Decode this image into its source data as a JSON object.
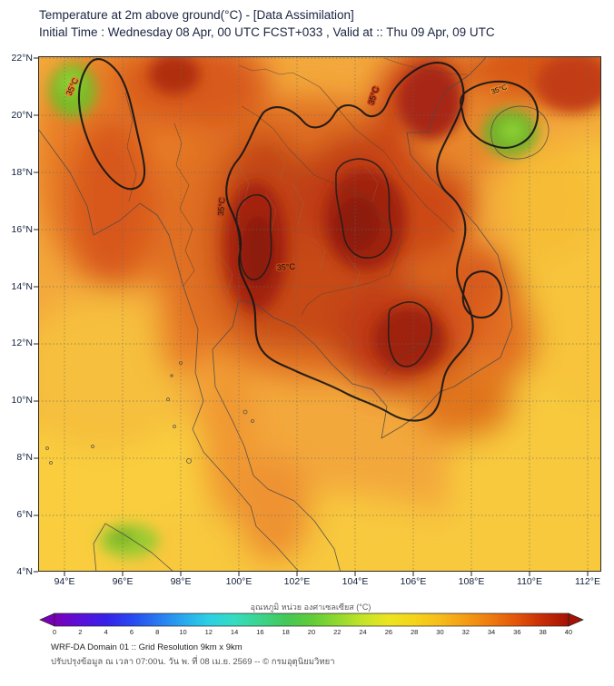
{
  "header": {
    "title_line1": "Temperature at 2m above ground(°C) - [Data Assimilation]",
    "title_line2": "Initial Time : Wednesday 08 Apr, 00 UTC FCST+033 , Valid at :: Thu 09 Apr, 09 UTC"
  },
  "axes": {
    "lat_ticks": [
      "22°N",
      "20°N",
      "18°N",
      "16°N",
      "14°N",
      "12°N",
      "10°N",
      "8°N",
      "6°N",
      "4°N"
    ],
    "lon_ticks": [
      "94°E",
      "96°E",
      "98°E",
      "100°E",
      "102°E",
      "104°E",
      "106°E",
      "108°E",
      "110°E",
      "112°E"
    ]
  },
  "map": {
    "contour_label": "35°C",
    "contour_value_c": 35
  },
  "colorbar": {
    "label": "อุณหภูมิ หน่วย องศาเซลเซียส (°C)",
    "min": 0,
    "max": 40,
    "ticks": [
      "0",
      "2",
      "4",
      "6",
      "8",
      "10",
      "12",
      "14",
      "16",
      "18",
      "20",
      "22",
      "24",
      "26",
      "28",
      "30",
      "32",
      "34",
      "36",
      "38",
      "40"
    ],
    "stops": [
      "#7a00b8",
      "#5a10d8",
      "#3820e8",
      "#2848f0",
      "#2878f0",
      "#28a8ee",
      "#2cd0e4",
      "#34dcc0",
      "#3cd48c",
      "#44c858",
      "#60cc38",
      "#90d830",
      "#c4e428",
      "#ece420",
      "#f4d41c",
      "#f6bc1a",
      "#f49c14",
      "#ee7a0e",
      "#e2540a",
      "#c62c06",
      "#a41204"
    ]
  },
  "footer": {
    "line1": "WRF-DA Domain 01 :: Grid Resolution 9km x 9km",
    "line2": "ปรับปรุงข้อมูล ณ เวลา 07:00น. วัน พ. ที่ 08 เม.ย. 2569 -- © กรมอุตุนิยมวิทยา"
  }
}
